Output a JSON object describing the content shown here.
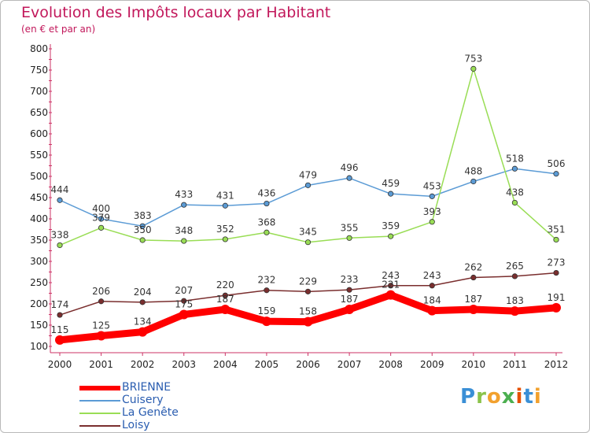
{
  "header": {
    "title": "Evolution des Impôts locaux par Habitant",
    "subtitle": "(en € et par an)"
  },
  "brand": {
    "logo_text": "Proxiti"
  },
  "chart_data": {
    "type": "line",
    "x": [
      "2000",
      "2001",
      "2002",
      "2003",
      "2004",
      "2005",
      "2006",
      "2007",
      "2008",
      "2009",
      "2010",
      "2011",
      "2012"
    ],
    "ylim": [
      100,
      800
    ],
    "yticks": [
      100,
      150,
      200,
      250,
      300,
      350,
      400,
      450,
      500,
      550,
      600,
      650,
      700,
      750,
      800
    ],
    "grid": false,
    "legend_position": "bottom-left",
    "series": [
      {
        "name": "BRIENNE",
        "color": "#ff0000",
        "values": [
          115,
          125,
          134,
          175,
          187,
          159,
          158,
          187,
          221,
          184,
          187,
          183,
          191
        ]
      },
      {
        "name": "Cuisery",
        "color": "#5b9bd5",
        "values": [
          444,
          400,
          383,
          433,
          431,
          436,
          479,
          496,
          459,
          453,
          488,
          518,
          506
        ]
      },
      {
        "name": "La Genête",
        "color": "#99dd55",
        "values": [
          338,
          379,
          350,
          348,
          352,
          368,
          345,
          355,
          359,
          393,
          753,
          438,
          351
        ]
      },
      {
        "name": "Loisy",
        "color": "#7a2e2e",
        "values": [
          174,
          206,
          204,
          207,
          220,
          232,
          229,
          233,
          243,
          243,
          262,
          265,
          273
        ]
      }
    ]
  }
}
